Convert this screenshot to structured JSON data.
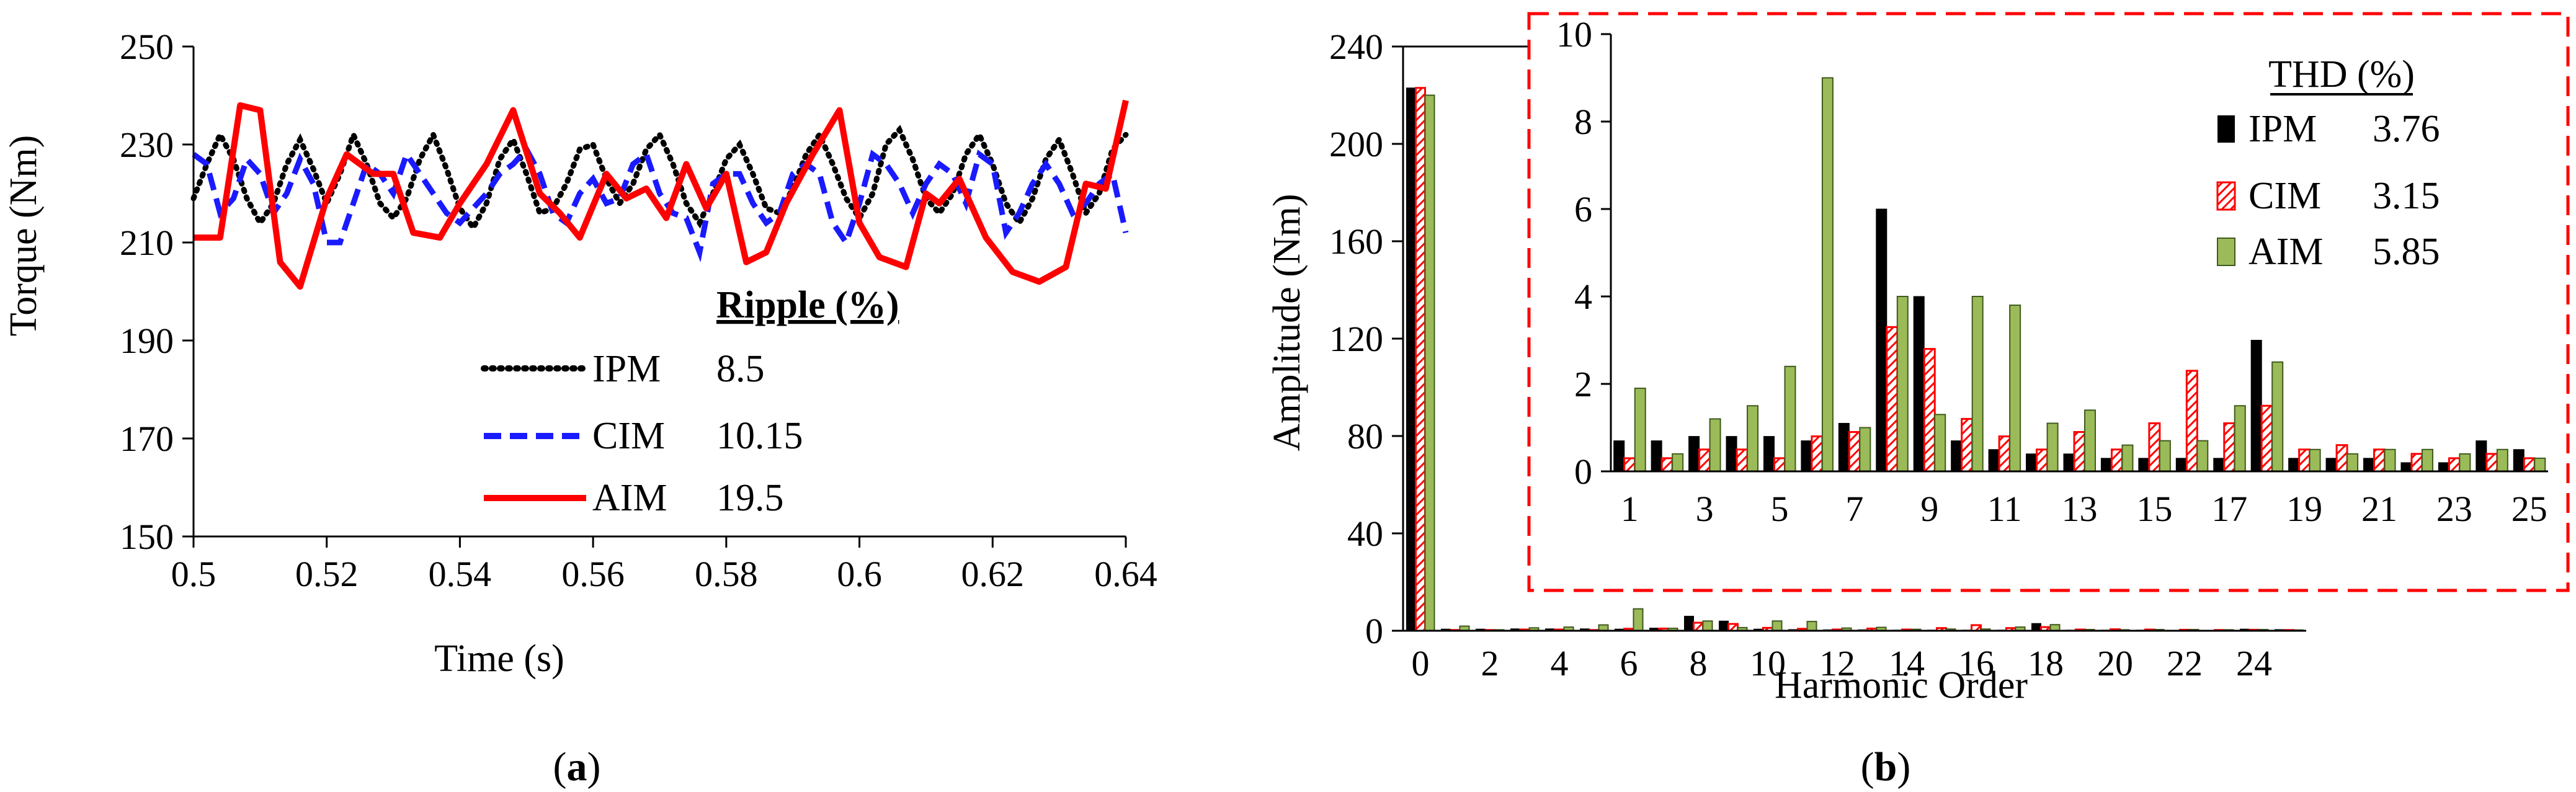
{
  "chart_data": [
    {
      "type": "line",
      "panel_label": "a",
      "xlabel": "Time (s)",
      "ylabel": "Torque (Nm)",
      "xlim": [
        0.5,
        0.64
      ],
      "ylim": [
        150,
        250
      ],
      "xticks": [
        0.5,
        0.52,
        0.54,
        0.56,
        0.58,
        0.6,
        0.62,
        0.64
      ],
      "xtick_labels": [
        "0.5",
        "0.52",
        "0.54",
        "0.56",
        "0.58",
        "0.6",
        "0.62",
        "0.64"
      ],
      "yticks": [
        150,
        170,
        190,
        210,
        230,
        250
      ],
      "ytick_labels": [
        "150",
        "170",
        "190",
        "210",
        "230",
        "250"
      ],
      "legend_title": "Ripple (%)",
      "series": [
        {
          "name": "IPM",
          "ripple": "8.5",
          "color": "#000000",
          "style": "dotted",
          "x": [
            0.5,
            0.502,
            0.504,
            0.506,
            0.508,
            0.51,
            0.512,
            0.514,
            0.516,
            0.518,
            0.52,
            0.522,
            0.524,
            0.526,
            0.528,
            0.53,
            0.532,
            0.534,
            0.536,
            0.538,
            0.54,
            0.542,
            0.544,
            0.546,
            0.548,
            0.55,
            0.552,
            0.554,
            0.556,
            0.558,
            0.56,
            0.562,
            0.564,
            0.566,
            0.568,
            0.57,
            0.572,
            0.574,
            0.576,
            0.578,
            0.58,
            0.582,
            0.584,
            0.586,
            0.588,
            0.59,
            0.592,
            0.594,
            0.596,
            0.598,
            0.6,
            0.602,
            0.604,
            0.606,
            0.608,
            0.61,
            0.612,
            0.614,
            0.616,
            0.618,
            0.62,
            0.622,
            0.624,
            0.626,
            0.628,
            0.63,
            0.632,
            0.634,
            0.636,
            0.638,
            0.64
          ],
          "y": [
            219,
            226,
            232,
            227,
            219,
            214,
            218,
            226,
            231,
            225,
            218,
            224,
            232,
            226,
            218,
            215,
            219,
            227,
            232,
            225,
            217,
            213,
            218,
            227,
            231,
            224,
            216,
            217,
            222,
            229,
            230,
            223,
            218,
            222,
            229,
            232,
            226,
            218,
            214,
            220,
            227,
            230,
            224,
            217,
            216,
            221,
            228,
            232,
            226,
            219,
            215,
            220,
            230,
            233,
            227,
            219,
            216,
            220,
            228,
            232,
            226,
            218,
            214,
            219,
            227,
            231,
            224,
            216,
            220,
            229,
            232
          ]
        },
        {
          "name": "CIM",
          "ripple": "10.15",
          "color": "#1a1aff",
          "style": "dashed",
          "x": [
            0.5,
            0.502,
            0.504,
            0.506,
            0.508,
            0.51,
            0.512,
            0.514,
            0.516,
            0.518,
            0.52,
            0.522,
            0.524,
            0.526,
            0.528,
            0.53,
            0.532,
            0.534,
            0.536,
            0.538,
            0.54,
            0.542,
            0.544,
            0.546,
            0.548,
            0.55,
            0.552,
            0.554,
            0.556,
            0.558,
            0.56,
            0.562,
            0.564,
            0.566,
            0.568,
            0.57,
            0.572,
            0.574,
            0.576,
            0.578,
            0.58,
            0.582,
            0.584,
            0.586,
            0.588,
            0.59,
            0.592,
            0.594,
            0.596,
            0.598,
            0.6,
            0.602,
            0.604,
            0.606,
            0.608,
            0.61,
            0.612,
            0.614,
            0.616,
            0.618,
            0.62,
            0.622,
            0.624,
            0.626,
            0.628,
            0.63,
            0.632,
            0.634,
            0.636,
            0.638,
            0.64
          ],
          "y": [
            228,
            226,
            216,
            219,
            227,
            224,
            216,
            220,
            227,
            222,
            210,
            210,
            218,
            226,
            224,
            220,
            228,
            224,
            220,
            216,
            214,
            217,
            220,
            224,
            226,
            229,
            224,
            216,
            214,
            220,
            223,
            218,
            219,
            226,
            228,
            220,
            216,
            215,
            208,
            222,
            224,
            224,
            218,
            214,
            216,
            224,
            226,
            224,
            214,
            210,
            218,
            228,
            226,
            222,
            216,
            222,
            226,
            224,
            218,
            228,
            226,
            212,
            216,
            222,
            226,
            222,
            216,
            218,
            222,
            224,
            212
          ]
        },
        {
          "name": "AIM",
          "ripple": "19.5",
          "color": "#ff0000",
          "style": "solid",
          "x": [
            0.5,
            0.504,
            0.507,
            0.51,
            0.513,
            0.516,
            0.52,
            0.523,
            0.527,
            0.53,
            0.533,
            0.537,
            0.54,
            0.544,
            0.548,
            0.552,
            0.555,
            0.558,
            0.562,
            0.565,
            0.568,
            0.571,
            0.574,
            0.577,
            0.58,
            0.583,
            0.586,
            0.589,
            0.593,
            0.597,
            0.6,
            0.603,
            0.607,
            0.61,
            0.612,
            0.615,
            0.619,
            0.623,
            0.627,
            0.631,
            0.634,
            0.637,
            0.64
          ],
          "y": [
            211,
            211,
            238,
            237,
            206,
            201,
            219,
            228,
            224,
            224,
            212,
            211,
            218,
            226,
            237,
            220,
            216,
            211,
            224,
            219,
            221,
            215,
            226,
            217,
            224,
            206,
            208,
            218,
            228,
            237,
            214,
            207,
            205,
            220,
            218,
            223,
            211,
            204,
            202,
            205,
            222,
            221,
            239
          ]
        }
      ]
    },
    {
      "type": "bar",
      "panel_label": "b",
      "xlabel": "Harmonic Order",
      "ylabel": "Amplitude (Nm)",
      "ylim": [
        0,
        240
      ],
      "yticks": [
        0,
        40,
        80,
        120,
        160,
        200,
        240
      ],
      "ytick_labels": [
        "0",
        "40",
        "80",
        "120",
        "160",
        "200",
        "240"
      ],
      "xtick_labels": [
        "0",
        "2",
        "4",
        "6",
        "8",
        "10",
        "12",
        "14",
        "16",
        "18",
        "20",
        "22",
        "24"
      ],
      "categories": [
        0,
        1,
        2,
        3,
        4,
        5,
        6,
        7,
        8,
        9,
        10,
        11,
        12,
        13,
        14,
        15,
        16,
        17,
        18,
        19,
        20,
        21,
        22,
        23,
        24,
        25
      ],
      "series": [
        {
          "name": "IPM",
          "color": "#000000",
          "pattern": "solid",
          "values": [
            223,
            0.7,
            0.7,
            0.8,
            0.8,
            0.8,
            0.7,
            1.1,
            6.0,
            4.0,
            0.7,
            0.5,
            0.4,
            0.4,
            0.3,
            0.3,
            0.3,
            0.3,
            3.0,
            0.3,
            0.3,
            0.3,
            0.2,
            0.2,
            0.7,
            0.5
          ]
        },
        {
          "name": "CIM",
          "color": "#ff0000",
          "pattern": "hatched",
          "values": [
            223,
            0.3,
            0.3,
            0.5,
            0.5,
            0.3,
            0.8,
            0.9,
            3.3,
            2.8,
            1.2,
            0.8,
            0.5,
            0.9,
            0.5,
            1.1,
            2.3,
            1.1,
            1.5,
            0.5,
            0.6,
            0.5,
            0.4,
            0.3,
            0.4,
            0.3
          ]
        },
        {
          "name": "AIM",
          "color": "#9bbb59",
          "pattern": "solid",
          "values": [
            220,
            1.9,
            0.4,
            1.2,
            1.5,
            2.4,
            9.0,
            1.0,
            4.0,
            1.3,
            4.0,
            3.8,
            1.1,
            1.4,
            0.6,
            0.7,
            0.7,
            1.5,
            2.5,
            0.5,
            0.4,
            0.5,
            0.5,
            0.4,
            0.5,
            0.3
          ]
        }
      ],
      "inset": {
        "ylim": [
          0,
          10
        ],
        "yticks": [
          0,
          2,
          4,
          6,
          8,
          10
        ],
        "ytick_labels": [
          "0",
          "2",
          "4",
          "6",
          "8",
          "10"
        ],
        "categories": [
          1,
          2,
          3,
          4,
          5,
          6,
          7,
          8,
          9,
          10,
          11,
          12,
          13,
          14,
          15,
          16,
          17,
          18,
          19,
          20,
          21,
          22,
          23,
          24,
          25
        ],
        "xtick_labels": [
          "1",
          "3",
          "5",
          "7",
          "9",
          "11",
          "13",
          "15",
          "17",
          "19",
          "21",
          "23",
          "25"
        ],
        "legend_title": "THD (%)",
        "thd": [
          {
            "name": "IPM",
            "value": "3.76"
          },
          {
            "name": "CIM",
            "value": "3.15"
          },
          {
            "name": "AIM",
            "value": "5.85"
          }
        ]
      }
    }
  ],
  "captions": {
    "a": "a",
    "b": "b"
  }
}
